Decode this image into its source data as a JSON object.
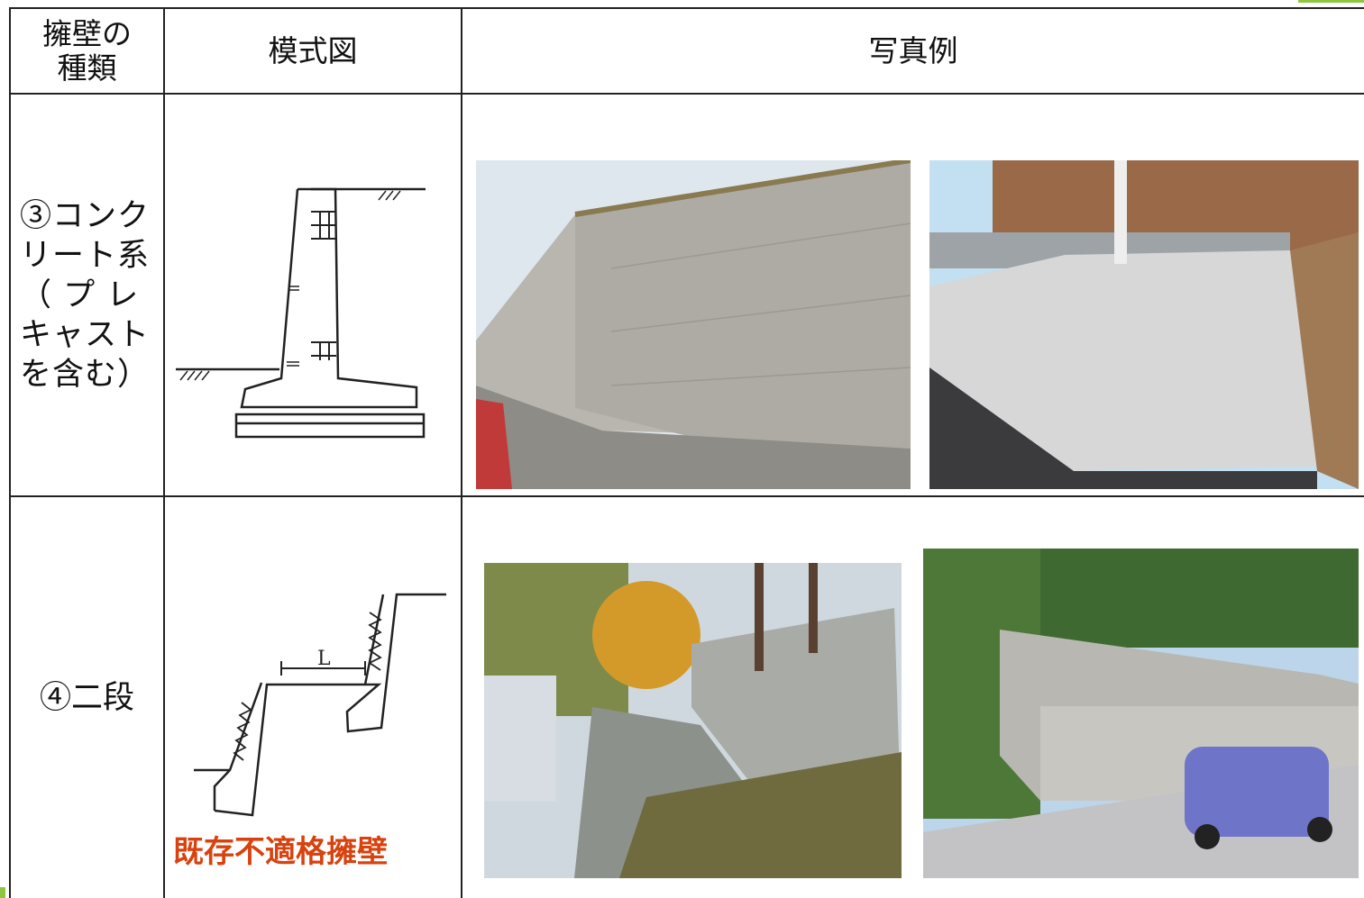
{
  "header": {
    "category": [
      "擁壁の",
      "種類"
    ],
    "diagram": "模式図",
    "photos": "写真例"
  },
  "rows": [
    {
      "category": [
        "③コンク",
        "リート系",
        "（ プ レ",
        "キャスト",
        "を含む）"
      ]
    },
    {
      "category": [
        "④二段"
      ],
      "diagram_label": "L",
      "note": "既存不適格擁壁"
    }
  ]
}
